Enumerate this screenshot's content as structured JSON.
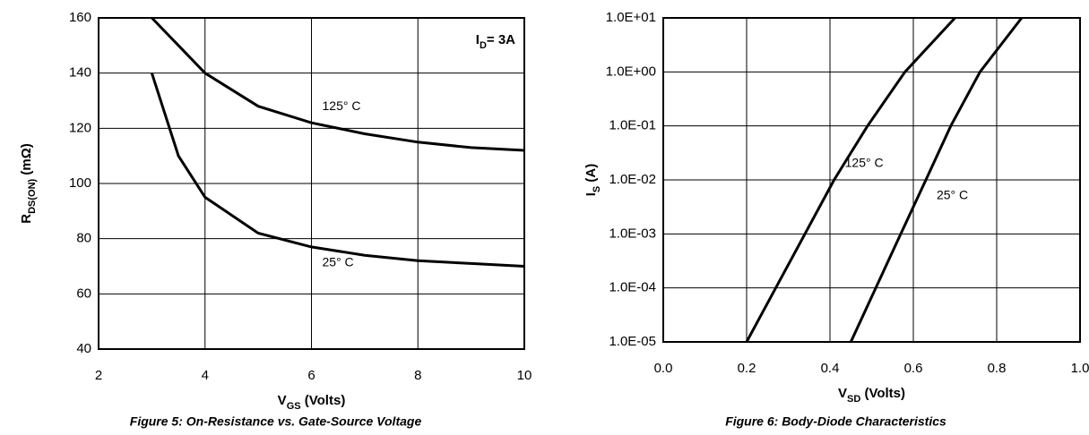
{
  "chart_data": [
    {
      "type": "line",
      "title": "Figure 5: On-Resistance vs. Gate-Source Voltage",
      "x_label": [
        "V",
        "GS",
        " (Volts)"
      ],
      "y_label": [
        "R",
        "DS(ON)",
        " (mΩ)"
      ],
      "annotation": [
        "I",
        "D",
        "= 3A"
      ],
      "xlim": [
        2,
        10
      ],
      "xticks": [
        2,
        4,
        6,
        8,
        10
      ],
      "ylim": [
        40,
        160
      ],
      "yticks": [
        40,
        60,
        80,
        100,
        120,
        140,
        160
      ],
      "grid": true,
      "log": false,
      "series": [
        {
          "name": "125° C",
          "color": "#000000",
          "x": [
            3,
            3.5,
            4,
            5,
            6,
            7,
            8,
            9,
            10
          ],
          "values": [
            160,
            150,
            140,
            128,
            122,
            118,
            115,
            113,
            112
          ]
        },
        {
          "name": "25° C",
          "color": "#000000",
          "x": [
            3,
            3.5,
            4,
            5,
            6,
            7,
            8,
            9,
            10
          ],
          "values": [
            140,
            110,
            95,
            82,
            77,
            74,
            72,
            71,
            70
          ]
        }
      ]
    },
    {
      "type": "line",
      "title": "Figure 6: Body-Diode Characteristics",
      "x_label": [
        "V",
        "SD",
        " (Volts)"
      ],
      "y_label": [
        "I",
        "S",
        " (A)"
      ],
      "xlim": [
        0,
        1
      ],
      "xticks": [
        {
          "value": 0,
          "label": "0.0"
        },
        0.2,
        0.4,
        0.6,
        0.8,
        {
          "value": 1,
          "label": "1.0"
        }
      ],
      "ylim": [
        1e-05,
        10
      ],
      "yticks": [
        {
          "value": 1e-05,
          "label": "1.0E-05"
        },
        {
          "value": 0.0001,
          "label": "1.0E-04"
        },
        {
          "value": 0.001,
          "label": "1.0E-03"
        },
        {
          "value": 0.01,
          "label": "1.0E-02"
        },
        {
          "value": 0.1,
          "label": "1.0E-01"
        },
        {
          "value": 1,
          "label": "1.0E+00"
        },
        {
          "value": 10,
          "label": "1.0E+01"
        }
      ],
      "grid": true,
      "log": true,
      "series": [
        {
          "name": "125° C",
          "color": "#000000",
          "x": [
            0.2,
            0.27,
            0.34,
            0.41,
            0.49,
            0.58,
            0.7
          ],
          "values": [
            1e-05,
            0.0001,
            0.001,
            0.01,
            0.1,
            1,
            10
          ]
        },
        {
          "name": "25° C",
          "color": "#000000",
          "x": [
            0.45,
            0.51,
            0.57,
            0.63,
            0.69,
            0.76,
            0.86
          ],
          "values": [
            1e-05,
            0.0001,
            0.001,
            0.01,
            0.1,
            1,
            10
          ]
        }
      ]
    }
  ]
}
